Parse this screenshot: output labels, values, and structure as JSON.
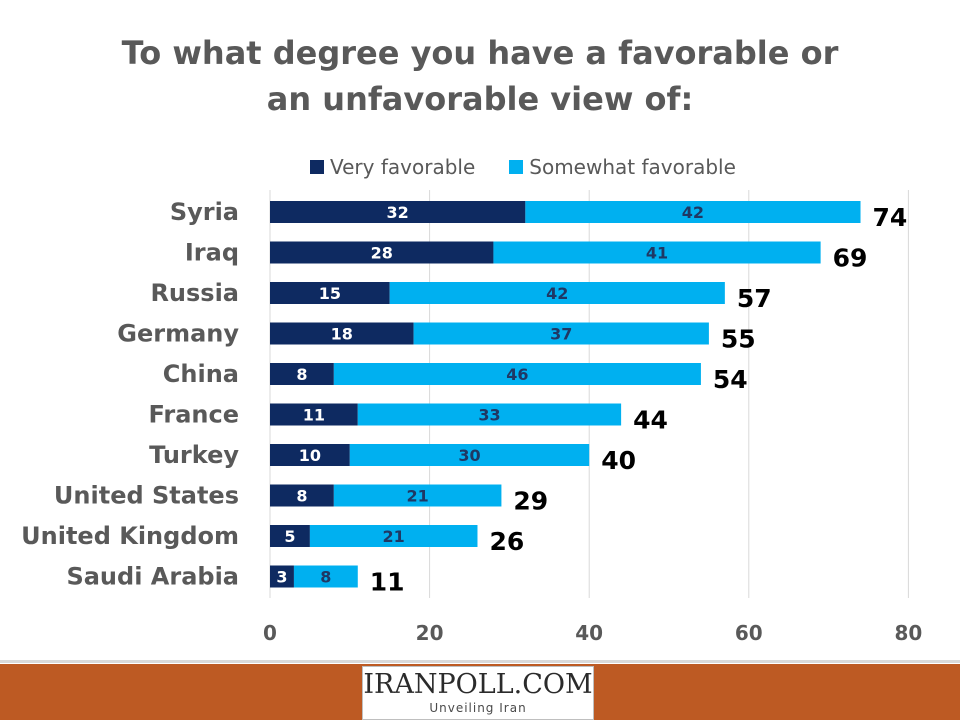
{
  "title": {
    "line1": "To what degree you have a favorable or",
    "line2": "an unfavorable view of:"
  },
  "colors": {
    "very_favorable": "#0e2a61",
    "somewhat_favorable": "#00b0f0",
    "category_text": "#595959",
    "footer": "#bd5a23"
  },
  "chart_data": {
    "type": "bar",
    "orientation": "horizontal",
    "stacked": true,
    "categories": [
      "Syria",
      "Iraq",
      "Russia",
      "Germany",
      "China",
      "France",
      "Turkey",
      "United States",
      "United Kingdom",
      "Saudi Arabia"
    ],
    "series": [
      {
        "name": "Very favorable",
        "values": [
          32,
          28,
          15,
          18,
          8,
          11,
          10,
          8,
          5,
          3
        ]
      },
      {
        "name": "Somewhat favorable",
        "values": [
          42,
          41,
          42,
          37,
          46,
          33,
          30,
          21,
          21,
          8
        ]
      }
    ],
    "totals": [
      74,
      69,
      57,
      55,
      54,
      44,
      40,
      29,
      26,
      11
    ],
    "xlim": [
      0,
      80
    ],
    "xticks": [
      0,
      20,
      40,
      60,
      80
    ],
    "grid": true,
    "legend_position": "top"
  },
  "footer": {
    "logo_text": "IRANPOLL.COM",
    "tagline": "Unveiling Iran"
  }
}
